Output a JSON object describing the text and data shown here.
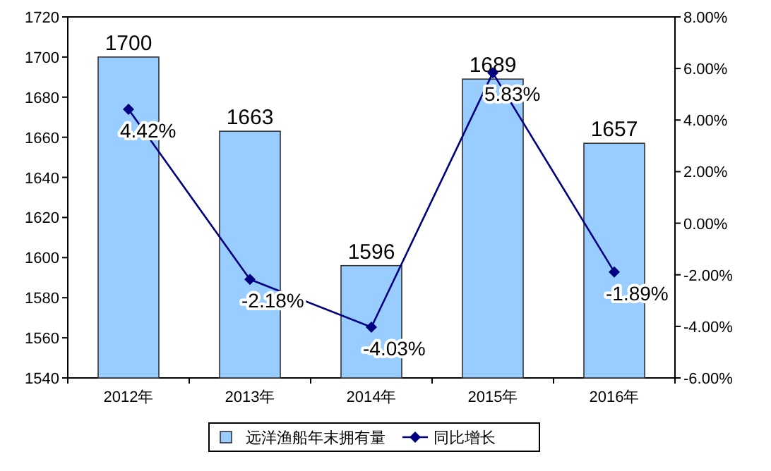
{
  "chart_data": {
    "type": "bar",
    "categories": [
      "2012年",
      "2013年",
      "2014年",
      "2015年",
      "2016年"
    ],
    "series": [
      {
        "name": "远洋渔船年末拥有量",
        "color": "#99ccff",
        "values": [
          1700,
          1663,
          1596,
          1689,
          1657
        ],
        "data_labels": true
      },
      {
        "name": "同比增长",
        "type": "line",
        "axis": "y2",
        "color": "#000080",
        "marker": "diamond",
        "values": [
          4.42,
          -2.18,
          -4.03,
          5.83,
          -1.89
        ],
        "value_labels": [
          "4.42%",
          "-2.18%",
          "-4.03%",
          "5.83%",
          "-1.89%"
        ]
      }
    ],
    "ylim": [
      1540,
      1720
    ],
    "yticks": [
      1540,
      1560,
      1580,
      1600,
      1620,
      1640,
      1660,
      1680,
      1700,
      1720
    ],
    "y2lim": [
      -6,
      8
    ],
    "y2ticks": [
      {
        "value": -6,
        "label": "-6.00%"
      },
      {
        "value": -4,
        "label": "-4.00%"
      },
      {
        "value": -2,
        "label": "-2.00%"
      },
      {
        "value": 0,
        "label": "0.00%"
      },
      {
        "value": 2,
        "label": "2.00%"
      },
      {
        "value": 4,
        "label": "4.00%"
      },
      {
        "value": 6,
        "label": "6.00%"
      },
      {
        "value": 8,
        "label": "8.00%"
      }
    ],
    "grid": false,
    "legend": "bottom"
  }
}
